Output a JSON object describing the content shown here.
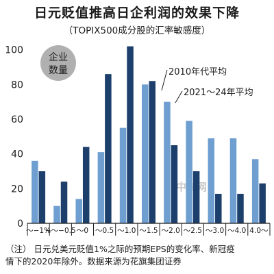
{
  "header": {
    "title": "日元贬值推高日企利润的效果下降",
    "subtitle": "（TOPIX500成分股的汇率敏感度）"
  },
  "footnote": {
    "mark": "（注）",
    "line1": "日元兑美元贬值1%之际的预期EPS的变化率、新冠疫",
    "line2": "情下的2020年除外。数据来源为花旗集团证券"
  },
  "watermark": {
    "text": "中文网"
  },
  "colors": {
    "series_2010s": "#6e9fd0",
    "series_2021_24": "#1d3f6b",
    "badge_bg": "#b0b0b0"
  },
  "chart_data": {
    "type": "bar",
    "title": "日元贬值推高日企利润的效果下降",
    "subtitle": "（TOPIX500成分股的汇率敏感度）",
    "ylabel": "企业\n数量",
    "ylabel_lines": [
      "企业",
      "数量"
    ],
    "ylim": [
      0,
      105
    ],
    "yticks": [
      0,
      20,
      40,
      60,
      80,
      100
    ],
    "grid": false,
    "categories": [
      "～−1%",
      "−～−0.5",
      "～0",
      "～0.5",
      "～1.0",
      "～1.5",
      "～2.0",
      "～2.5",
      "～3.0",
      "～4.0",
      "4.0～"
    ],
    "series": [
      {
        "name": "2010年代平均",
        "values": [
          36,
          10,
          14,
          41,
          55,
          80,
          70,
          59,
          49,
          49,
          37
        ]
      },
      {
        "name": "2021～24年平均",
        "values": [
          30,
          24,
          44,
          86,
          102,
          82,
          45,
          30,
          17,
          17,
          23
        ]
      }
    ],
    "annotations": [
      "2010年代平均",
      "2021～24年平均"
    ]
  }
}
